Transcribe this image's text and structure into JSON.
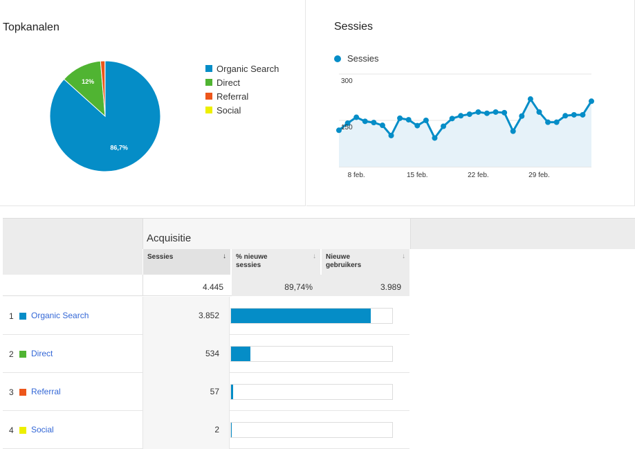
{
  "top_channels": {
    "title": "Topkanalen",
    "legend": [
      {
        "label": "Organic Search",
        "color": "#058dc7"
      },
      {
        "label": "Direct",
        "color": "#50b432"
      },
      {
        "label": "Referral",
        "color": "#ed561b"
      },
      {
        "label": "Social",
        "color": "#edef00"
      }
    ]
  },
  "sessions_chart": {
    "title": "Sessies",
    "legend_label": "Sessies",
    "color": "#058dc7"
  },
  "chart_data": [
    {
      "type": "pie",
      "categories": [
        "Organic Search",
        "Direct",
        "Referral",
        "Social"
      ],
      "values": [
        86.7,
        12,
        1.3,
        0.04
      ],
      "data_labels": [
        "86,7%",
        "12%",
        "",
        ""
      ],
      "colors": [
        "#058dc7",
        "#50b432",
        "#ed561b",
        "#edef00"
      ]
    },
    {
      "type": "area",
      "title": "Sessies",
      "series": [
        {
          "name": "Sessies",
          "values": [
            118,
            141,
            160,
            147,
            143,
            134,
            101,
            157,
            152,
            133,
            150,
            93,
            131,
            156,
            165,
            170,
            177,
            173,
            177,
            175,
            115,
            164,
            219,
            177,
            144,
            144,
            165,
            168,
            168,
            212
          ]
        }
      ],
      "x_ticks": [
        "8 feb.",
        "15 feb.",
        "22 feb.",
        "29 feb."
      ],
      "y_ticks": [
        "300",
        "150"
      ],
      "ylim": [
        0,
        300
      ],
      "grid": true
    }
  ],
  "table": {
    "group_title": "Acquisitie",
    "columns": [
      {
        "label": "Sessies",
        "sorted": true,
        "arrow": "↓"
      },
      {
        "label": "% nieuwe sessies",
        "sorted": false,
        "arrow": "↓"
      },
      {
        "label": "Nieuwe gebruikers",
        "sorted": false,
        "arrow": "↓"
      }
    ],
    "totals": [
      "4.445",
      "89,74%",
      "3.989"
    ],
    "rows": [
      {
        "num": "1",
        "label": "Organic Search",
        "color": "#058dc7",
        "value": "3.852",
        "share": 0.8666
      },
      {
        "num": "2",
        "label": "Direct",
        "color": "#50b432",
        "value": "534",
        "share": 0.1201
      },
      {
        "num": "3",
        "label": "Referral",
        "color": "#ed561b",
        "value": "57",
        "share": 0.0128
      },
      {
        "num": "4",
        "label": "Social",
        "color": "#edef00",
        "value": "2",
        "share": 0.0004
      }
    ]
  }
}
